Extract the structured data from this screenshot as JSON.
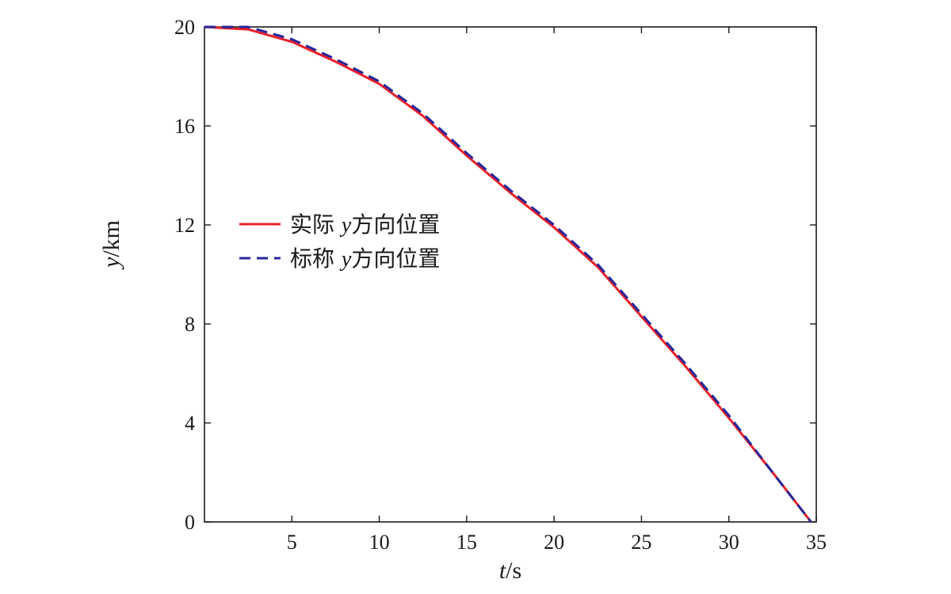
{
  "chart_data": {
    "type": "line",
    "title": "",
    "xlabel": {
      "var": "t",
      "unit": "/s"
    },
    "ylabel": {
      "var": "y",
      "unit": "/km"
    },
    "xlim": [
      0,
      35
    ],
    "ylim": [
      0,
      20
    ],
    "xticks": [
      5,
      10,
      15,
      20,
      25,
      30,
      35
    ],
    "yticks": [
      0,
      4,
      8,
      12,
      16,
      20
    ],
    "grid": false,
    "legend_position": "center-left",
    "series": [
      {
        "name": {
          "pre": "实际 ",
          "var": "y",
          "post": "方向位置"
        },
        "color": "#e8202a",
        "style": "solid",
        "x": [
          0,
          2.5,
          5,
          7.5,
          10,
          12.5,
          15,
          17.5,
          20,
          22.5,
          25,
          27.5,
          30,
          32.5,
          34.7
        ],
        "y": [
          20,
          19.9,
          19.4,
          18.6,
          17.7,
          16.4,
          14.8,
          13.3,
          11.9,
          10.3,
          8.3,
          6.3,
          4.2,
          2.0,
          0
        ]
      },
      {
        "name": {
          "pre": "标称 ",
          "var": "y",
          "post": "方向位置"
        },
        "color": "#26279a",
        "style": "dashed",
        "x": [
          0,
          2.5,
          5,
          7.5,
          10,
          12.5,
          15,
          17.5,
          20,
          22.5,
          25,
          27.5,
          30,
          32.5,
          34.7
        ],
        "y": [
          20,
          20.0,
          19.5,
          18.7,
          17.8,
          16.5,
          14.9,
          13.4,
          12.0,
          10.4,
          8.4,
          6.4,
          4.3,
          2.0,
          0
        ]
      }
    ]
  }
}
